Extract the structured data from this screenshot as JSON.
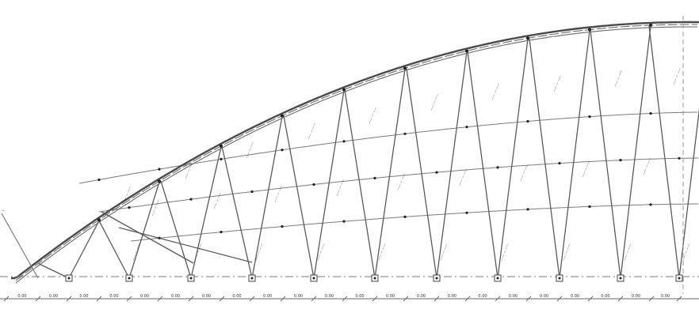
{
  "drawing": {
    "title": "",
    "dimension_text": "0.00",
    "member_label_text": "—— — ——",
    "side_label_text": "—"
  }
}
